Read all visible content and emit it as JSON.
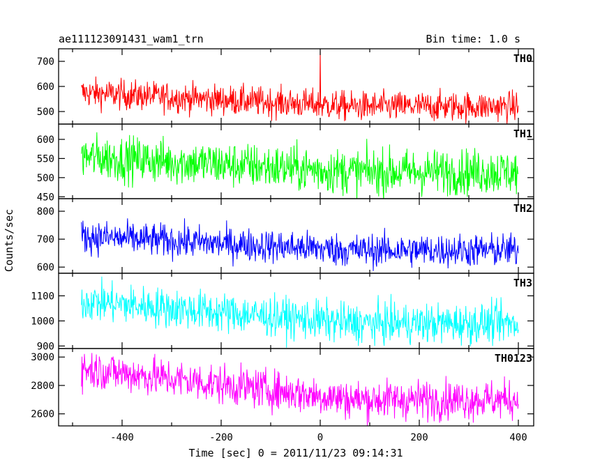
{
  "header": {
    "title": "ae111123091431_wam1_trn",
    "bin_time": "Bin time: 1.0 s"
  },
  "chart_data": {
    "type": "line",
    "xlabel": "Time [sec] 0 = 2011/11/23 09:14:31",
    "ylabel": "Counts/sec",
    "xlim": [
      -500,
      400
    ],
    "xticks": [
      -400,
      -200,
      0,
      200,
      400
    ],
    "grid": false,
    "panels": [
      {
        "name": "TH0",
        "color": "#ff0000",
        "ylim": [
          450,
          750
        ],
        "yticks": [
          500,
          600,
          700
        ],
        "start": 575,
        "end": 520,
        "noise": 30,
        "spikes": [
          {
            "x": 0,
            "y": 750
          }
        ]
      },
      {
        "name": "TH1",
        "color": "#00ff00",
        "ylim": [
          445,
          640
        ],
        "yticks": [
          450,
          500,
          550,
          600
        ],
        "start": 555,
        "end": 515,
        "noise": 30,
        "spikes": []
      },
      {
        "name": "TH2",
        "color": "#0000ff",
        "ylim": [
          578,
          845
        ],
        "yticks": [
          600,
          700,
          800
        ],
        "start": 710,
        "end": 660,
        "noise": 30,
        "spikes": []
      },
      {
        "name": "TH3",
        "color": "#00ffff",
        "ylim": [
          890,
          1190
        ],
        "yticks": [
          900,
          1000,
          1100
        ],
        "start": 1080,
        "end": 990,
        "noise": 40,
        "spikes": []
      },
      {
        "name": "TH0123",
        "color": "#ff00ff",
        "ylim": [
          2515,
          3060
        ],
        "yticks": [
          2600,
          2800,
          3000
        ],
        "start": 2920,
        "end": 2700,
        "noise": 70,
        "spikes": []
      }
    ]
  }
}
